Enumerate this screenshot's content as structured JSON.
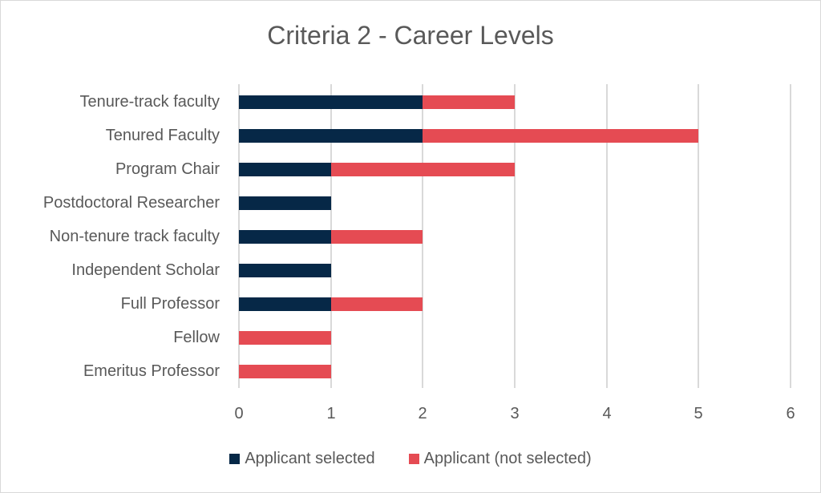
{
  "chart_data": {
    "type": "bar",
    "orientation": "horizontal",
    "stacked": true,
    "title": "Criteria 2 - Career Levels",
    "xlabel": "",
    "ylabel": "",
    "xlim": [
      0,
      6
    ],
    "x_ticks": [
      "0",
      "1",
      "2",
      "3",
      "4",
      "5",
      "6"
    ],
    "grid": true,
    "legend_position": "bottom",
    "categories": [
      "Tenure-track faculty",
      "Tenured Faculty",
      "Program Chair",
      "Postdoctoral Researcher",
      "Non-tenure track faculty",
      "Independent Scholar",
      "Full Professor",
      "Fellow",
      "Emeritus Professor"
    ],
    "series": [
      {
        "name": "Applicant selected",
        "color": "#062847",
        "values": [
          2,
          2,
          1,
          1,
          1,
          1,
          1,
          0,
          0
        ]
      },
      {
        "name": "Applicant (not selected)",
        "color": "#e54b53",
        "values": [
          1,
          3,
          2,
          0,
          1,
          0,
          1,
          1,
          1
        ]
      }
    ]
  },
  "labels": {
    "title": "Criteria 2 - Career Levels",
    "cat0": "Tenure-track faculty",
    "cat1": "Tenured Faculty",
    "cat2": "Program Chair",
    "cat3": "Postdoctoral Researcher",
    "cat4": "Non-tenure track faculty",
    "cat5": "Independent Scholar",
    "cat6": "Full Professor",
    "cat7": "Fellow",
    "cat8": "Emeritus Professor",
    "t0": "0",
    "t1": "1",
    "t2": "2",
    "t3": "3",
    "t4": "4",
    "t5": "5",
    "t6": "6",
    "legend_selected": "Applicant selected",
    "legend_not_selected": "Applicant (not selected)"
  }
}
